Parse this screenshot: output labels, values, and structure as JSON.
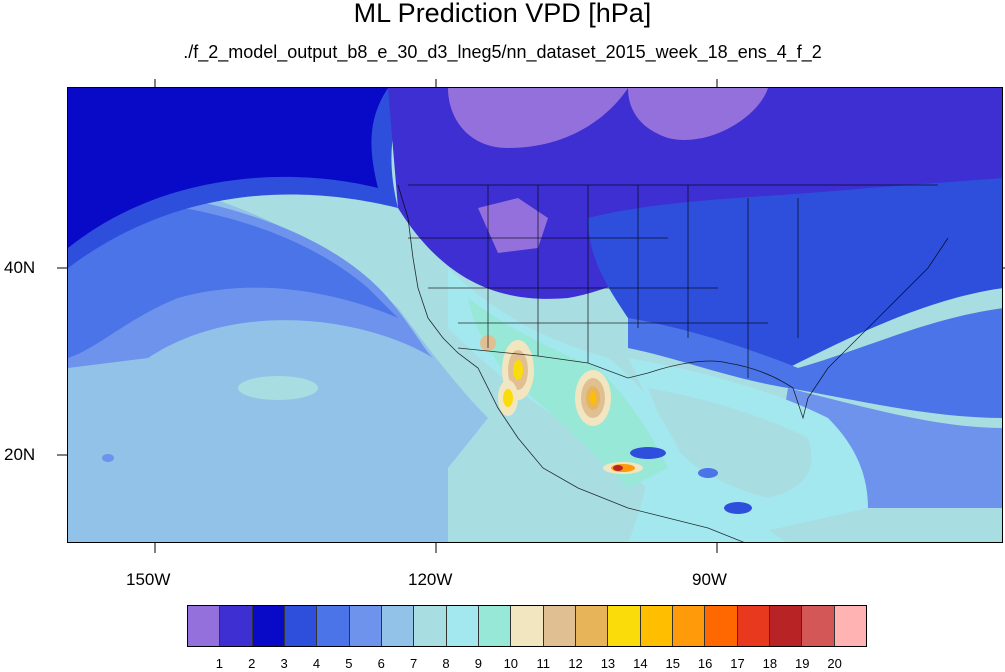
{
  "title": "ML Prediction VPD [hPa]",
  "subtitle": "./f_2_model_output_b8_e_30_d3_lneg5/nn_dataset_2015_week_18_ens_4_f_2",
  "axes": {
    "lon_labels": [
      "150W",
      "120W",
      "90W"
    ],
    "lat_labels": [
      "40N",
      "20N"
    ]
  },
  "map": {
    "projection": "cylindrical-equidistant",
    "lon_range": [
      -160,
      -62
    ],
    "lat_range": [
      10,
      59
    ],
    "features": [
      "coastlines",
      "us-state-boundaries",
      "country-boundaries"
    ]
  },
  "colorbar": {
    "labels": [
      "1",
      "2",
      "3",
      "4",
      "5",
      "6",
      "7",
      "8",
      "9",
      "10",
      "11",
      "12",
      "13",
      "14",
      "15",
      "16",
      "17",
      "18",
      "19",
      "20"
    ],
    "colors": [
      "#9370db",
      "#3e2fd2",
      "#0909c8",
      "#2e4fdc",
      "#4a74e8",
      "#6e93ed",
      "#92c2e8",
      "#a8dde2",
      "#a4e8ef",
      "#98e8d8",
      "#f2e6c0",
      "#e0c092",
      "#e8b45a",
      "#fadc0a",
      "#ffbf00",
      "#ff9a0a",
      "#ff6700",
      "#e8391e",
      "#b82426",
      "#d45757",
      "#ffb3b3"
    ]
  }
}
